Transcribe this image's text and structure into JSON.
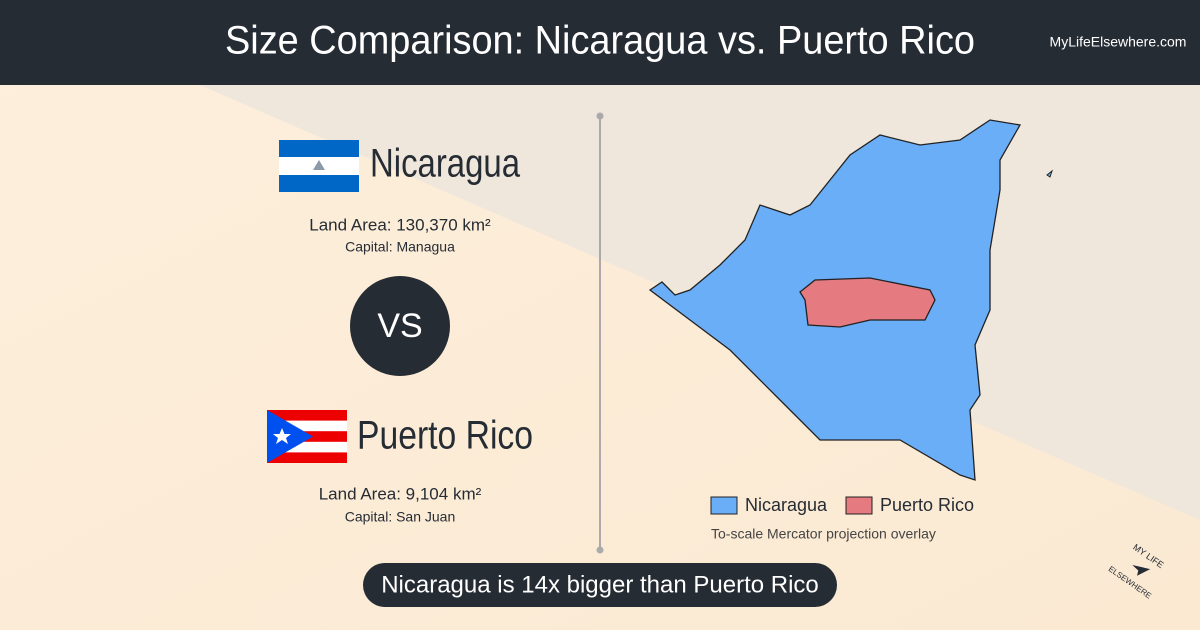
{
  "header": {
    "title": "Size Comparison: Nicaragua vs. Puerto Rico",
    "site": "MyLifeElsewhere.com"
  },
  "country_a": {
    "name": "Nicaragua",
    "land_area": "Land Area: 130,370 km²",
    "capital": "Capital: Managua"
  },
  "vs": "VS",
  "country_b": {
    "name": "Puerto Rico",
    "land_area": "Land Area: 9,104 km²",
    "capital": "Capital: San Juan"
  },
  "legend": {
    "items": [
      "Nicaragua",
      "Puerto Rico"
    ],
    "note": "To-scale Mercator projection overlay"
  },
  "summary": "Nicaragua is 14x bigger than Puerto Rico",
  "logo": {
    "top": "MY LIFE",
    "bottom": "ELSEWHERE"
  }
}
